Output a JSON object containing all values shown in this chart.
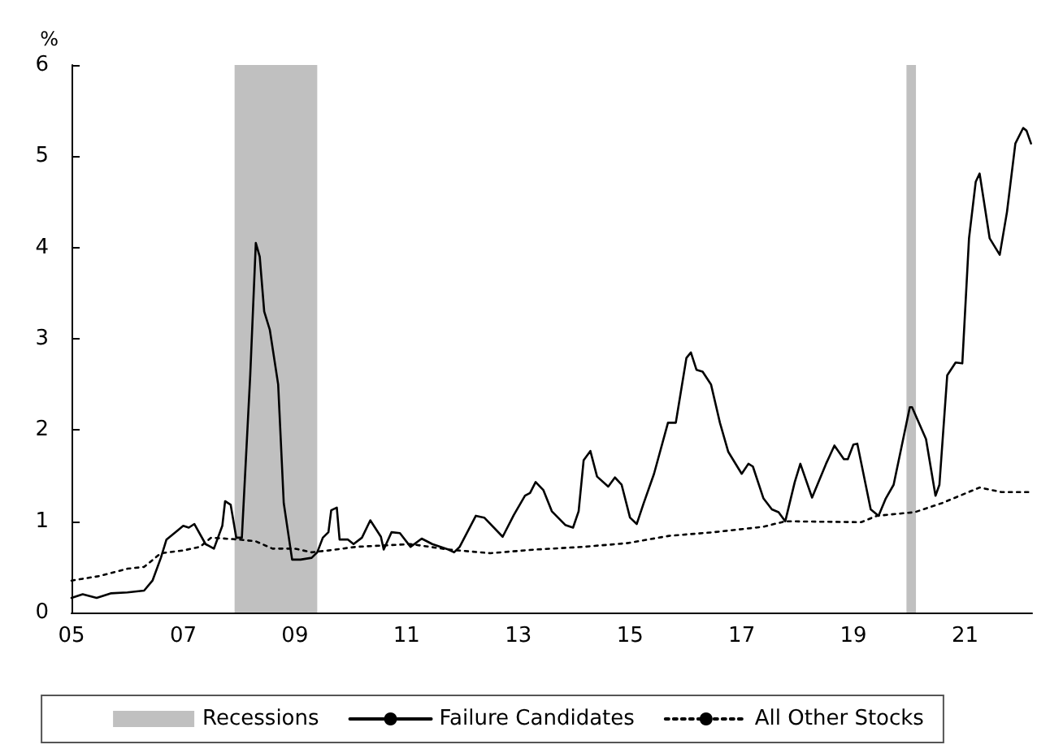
{
  "chart_data": {
    "type": "line",
    "ylabel": "%",
    "xlim": [
      2005,
      2022.2
    ],
    "ylim": [
      0,
      6
    ],
    "xticks": [
      {
        "value": 2005,
        "label": "05"
      },
      {
        "value": 2007,
        "label": "07"
      },
      {
        "value": 2009,
        "label": "09"
      },
      {
        "value": 2011,
        "label": "11"
      },
      {
        "value": 2013,
        "label": "13"
      },
      {
        "value": 2015,
        "label": "15"
      },
      {
        "value": 2017,
        "label": "17"
      },
      {
        "value": 2019,
        "label": "19"
      },
      {
        "value": 2021,
        "label": "21"
      }
    ],
    "yticks": [
      0,
      1,
      2,
      3,
      4,
      5,
      6
    ],
    "grid": false,
    "legend": "bottom",
    "marker": "none",
    "bands": [
      {
        "axis": "x",
        "from": 2007.92,
        "to": 2009.4,
        "label": "Recessions",
        "color": "#c0c0c0"
      },
      {
        "axis": "x",
        "from": 2019.95,
        "to": 2020.12,
        "color": "#c0c0c0"
      }
    ],
    "series": [
      {
        "name": "Failure Candidates",
        "color": "#000000",
        "line_style": "solid",
        "x": [
          2005.0,
          2005.2,
          2005.45,
          2005.7,
          2006.0,
          2006.3,
          2006.45,
          2006.6,
          2006.7,
          2006.9,
          2007.0,
          2007.1,
          2007.2,
          2007.4,
          2007.55,
          2007.7,
          2007.75,
          2007.85,
          2007.95,
          2008.05,
          2008.2,
          2008.3,
          2008.37,
          2008.45,
          2008.55,
          2008.7,
          2008.8,
          2008.95,
          2009.1,
          2009.3,
          2009.4,
          2009.5,
          2009.6,
          2009.65,
          2009.75,
          2009.8,
          2009.95,
          2010.05,
          2010.2,
          2010.35,
          2010.54,
          2010.59,
          2010.73,
          2010.88,
          2011.07,
          2011.27,
          2011.46,
          2011.75,
          2011.85,
          2011.95,
          2012.24,
          2012.39,
          2012.72,
          2012.92,
          2013.12,
          2013.21,
          2013.31,
          2013.45,
          2013.6,
          2013.84,
          2013.98,
          2014.08,
          2014.17,
          2014.29,
          2014.41,
          2014.61,
          2014.73,
          2014.85,
          2015.0,
          2015.12,
          2015.24,
          2015.43,
          2015.68,
          2015.82,
          2016.01,
          2016.09,
          2016.19,
          2016.3,
          2016.45,
          2016.61,
          2016.76,
          2017.0,
          2017.12,
          2017.2,
          2017.39,
          2017.54,
          2017.66,
          2017.78,
          2017.95,
          2018.05,
          2018.26,
          2018.51,
          2018.66,
          2018.83,
          2018.9,
          2019.0,
          2019.07,
          2019.31,
          2019.45,
          2019.58,
          2019.72,
          2020.01,
          2020.05,
          2020.3,
          2020.47,
          2020.54,
          2020.68,
          2020.83,
          2020.95,
          2021.07,
          2021.19,
          2021.26,
          2021.44,
          2021.62,
          2021.75,
          2021.9,
          2022.04,
          2022.1,
          2022.18
        ],
        "values": [
          0.16,
          0.2,
          0.16,
          0.21,
          0.22,
          0.24,
          0.35,
          0.6,
          0.8,
          0.9,
          0.95,
          0.93,
          0.97,
          0.75,
          0.7,
          0.95,
          1.22,
          1.18,
          0.82,
          0.82,
          2.6,
          4.05,
          3.9,
          3.3,
          3.1,
          2.5,
          1.2,
          0.58,
          0.58,
          0.6,
          0.66,
          0.82,
          0.88,
          1.12,
          1.15,
          0.8,
          0.8,
          0.75,
          0.82,
          1.01,
          0.83,
          0.69,
          0.88,
          0.87,
          0.72,
          0.81,
          0.75,
          0.69,
          0.66,
          0.72,
          1.06,
          1.04,
          0.83,
          1.07,
          1.28,
          1.31,
          1.43,
          1.34,
          1.11,
          0.96,
          0.93,
          1.11,
          1.67,
          1.77,
          1.49,
          1.38,
          1.48,
          1.4,
          1.04,
          0.97,
          1.19,
          1.52,
          2.08,
          2.08,
          2.79,
          2.85,
          2.66,
          2.64,
          2.5,
          2.08,
          1.76,
          1.52,
          1.63,
          1.6,
          1.25,
          1.13,
          1.1,
          1.0,
          1.43,
          1.63,
          1.26,
          1.63,
          1.83,
          1.68,
          1.68,
          1.84,
          1.85,
          1.13,
          1.06,
          1.25,
          1.4,
          2.25,
          2.25,
          1.9,
          1.28,
          1.4,
          2.6,
          2.74,
          2.73,
          4.1,
          4.72,
          4.81,
          4.1,
          3.92,
          4.39,
          5.14,
          5.31,
          5.28,
          5.14
        ]
      },
      {
        "name": "All Other Stocks",
        "color": "#000000",
        "line_style": "dotted",
        "x": [
          2005.0,
          2005.5,
          2006.0,
          2006.3,
          2006.6,
          2007.0,
          2007.3,
          2007.5,
          2008.0,
          2008.3,
          2008.6,
          2009.0,
          2009.3,
          2009.6,
          2010.1,
          2011.07,
          2011.75,
          2012.5,
          2013.3,
          2014.17,
          2014.95,
          2015.7,
          2016.5,
          2017.39,
          2017.78,
          2019.14,
          2019.42,
          2020.1,
          2020.59,
          2021.26,
          2021.65,
          2022.18
        ],
        "values": [
          0.35,
          0.4,
          0.48,
          0.5,
          0.65,
          0.68,
          0.72,
          0.82,
          0.8,
          0.78,
          0.7,
          0.7,
          0.66,
          0.68,
          0.72,
          0.75,
          0.69,
          0.65,
          0.69,
          0.72,
          0.76,
          0.84,
          0.88,
          0.94,
          1.0,
          0.99,
          1.06,
          1.1,
          1.2,
          1.37,
          1.32,
          1.32
        ]
      }
    ]
  }
}
